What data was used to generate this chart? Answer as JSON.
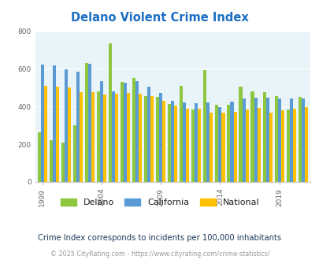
{
  "title": "Delano Violent Crime Index",
  "subtitle": "Crime Index corresponds to incidents per 100,000 inhabitants",
  "footer": "© 2025 CityRating.com - https://www.cityrating.com/crime-statistics/",
  "years": [
    1999,
    2000,
    2001,
    2002,
    2003,
    2004,
    2005,
    2006,
    2007,
    2008,
    2009,
    2010,
    2011,
    2012,
    2013,
    2014,
    2015,
    2016,
    2017,
    2018,
    2019,
    2020,
    2021
  ],
  "delano": [
    265,
    220,
    210,
    300,
    630,
    480,
    735,
    530,
    550,
    455,
    450,
    415,
    510,
    385,
    595,
    410,
    410,
    505,
    480,
    475,
    455,
    385,
    450
  ],
  "california": [
    622,
    617,
    598,
    586,
    625,
    535,
    480,
    527,
    533,
    505,
    474,
    430,
    422,
    420,
    421,
    396,
    426,
    445,
    449,
    449,
    444,
    442,
    445
  ],
  "national": [
    508,
    506,
    500,
    475,
    476,
    464,
    469,
    474,
    467,
    455,
    431,
    404,
    387,
    387,
    368,
    366,
    373,
    386,
    394,
    369,
    379,
    387,
    395
  ],
  "delano_color": "#8dc63f",
  "california_color": "#5b9bd5",
  "national_color": "#ffc000",
  "bg_color": "#e8f4f8",
  "title_color": "#1b6ec2",
  "subtitle_color": "#1a3a5c",
  "footer_color": "#999999",
  "ylim": [
    0,
    800
  ],
  "yticks": [
    0,
    200,
    400,
    600,
    800
  ],
  "xlabel_ticks": [
    1999,
    2004,
    2009,
    2014,
    2019
  ],
  "bar_width": 0.27
}
